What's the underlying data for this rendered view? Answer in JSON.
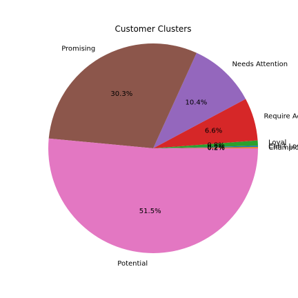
{
  "chart_data": {
    "type": "pie",
    "title": "Customer Clusters",
    "start_angle_deg": 0,
    "direction": "counterclockwise",
    "slices": [
      {
        "label": "Champions",
        "value": 0.2,
        "pct_label": "0.2%",
        "color": "#ff7f0e"
      },
      {
        "label": "Can't Lose Them",
        "value": 0.2,
        "pct_label": "0.2%",
        "color": "#1f77b4"
      },
      {
        "label": "Loyal",
        "value": 0.8,
        "pct_label": "0.8%",
        "color": "#2ca02c"
      },
      {
        "label": "Require Activation",
        "value": 6.6,
        "pct_label": "6.6%",
        "color": "#d62728"
      },
      {
        "label": "Needs Attention",
        "value": 10.4,
        "pct_label": "10.4%",
        "color": "#9467bd"
      },
      {
        "label": "Promising",
        "value": 30.3,
        "pct_label": "30.3%",
        "color": "#8c564b"
      },
      {
        "label": "Potential",
        "value": 51.5,
        "pct_label": "51.5%",
        "color": "#e377c2"
      }
    ]
  }
}
